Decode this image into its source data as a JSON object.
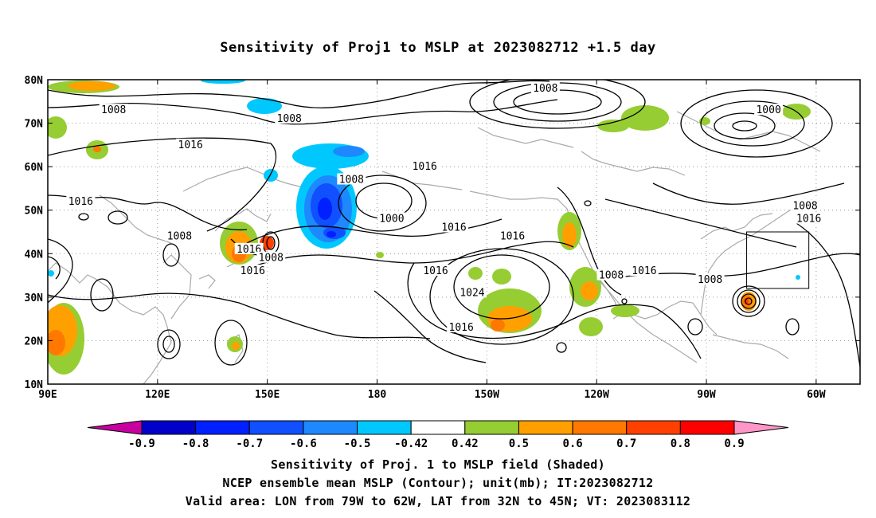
{
  "title": "Sensitivity of Proj1 to MSLP at 2023082712 +1.5 day",
  "captions": {
    "line1": "Sensitivity of Proj. 1 to MSLP field (Shaded)",
    "line2": "NCEP ensemble mean MSLP (Contour); unit(mb); IT:2023082712",
    "line3": "Valid area: LON from 79W to 62W, LAT from 32N to 45N; VT: 2023083112"
  },
  "map": {
    "lon_range": [
      90,
      312
    ],
    "lat_range": [
      10,
      80
    ],
    "x_ticks": [
      {
        "lon": 90,
        "label": "90E"
      },
      {
        "lon": 120,
        "label": "120E"
      },
      {
        "lon": 150,
        "label": "150E"
      },
      {
        "lon": 180,
        "label": "180"
      },
      {
        "lon": 210,
        "label": "150W"
      },
      {
        "lon": 240,
        "label": "120W"
      },
      {
        "lon": 270,
        "label": "90W"
      },
      {
        "lon": 300,
        "label": "60W"
      }
    ],
    "y_ticks": [
      {
        "lat": 10,
        "label": "10N"
      },
      {
        "lat": 20,
        "label": "20N"
      },
      {
        "lat": 30,
        "label": "30N"
      },
      {
        "lat": 40,
        "label": "40N"
      },
      {
        "lat": 50,
        "label": "50N"
      },
      {
        "lat": 60,
        "label": "60N"
      },
      {
        "lat": 70,
        "label": "70N"
      },
      {
        "lat": 80,
        "label": "80N"
      }
    ],
    "grid": "dotted",
    "valid_box": {
      "lon_min": 281,
      "lon_max": 298,
      "lat_min": 32,
      "lat_max": 45
    },
    "contour_labels": [
      {
        "text": "1008",
        "lon": 108,
        "lat": 73
      },
      {
        "text": "1008",
        "lon": 156,
        "lat": 71
      },
      {
        "text": "1008",
        "lon": 226,
        "lat": 78
      },
      {
        "text": "1000",
        "lon": 287,
        "lat": 73
      },
      {
        "text": "1016",
        "lon": 129,
        "lat": 65
      },
      {
        "text": "1016",
        "lon": 193,
        "lat": 60
      },
      {
        "text": "1008",
        "lon": 173,
        "lat": 57
      },
      {
        "text": "1016",
        "lon": 99,
        "lat": 52
      },
      {
        "text": "1008",
        "lon": 297,
        "lat": 51
      },
      {
        "text": "1000",
        "lon": 184,
        "lat": 48
      },
      {
        "text": "1016",
        "lon": 298,
        "lat": 48
      },
      {
        "text": "1016",
        "lon": 201,
        "lat": 46
      },
      {
        "text": "1008",
        "lon": 126,
        "lat": 44
      },
      {
        "text": "1016",
        "lon": 217,
        "lat": 44
      },
      {
        "text": "1016",
        "lon": 145,
        "lat": 41
      },
      {
        "text": "1008",
        "lon": 151,
        "lat": 39
      },
      {
        "text": "1016",
        "lon": 146,
        "lat": 36
      },
      {
        "text": "1016",
        "lon": 196,
        "lat": 36
      },
      {
        "text": "1008",
        "lon": 244,
        "lat": 35
      },
      {
        "text": "1016",
        "lon": 253,
        "lat": 36
      },
      {
        "text": "1008",
        "lon": 271,
        "lat": 34
      },
      {
        "text": "1024",
        "lon": 206,
        "lat": 31
      },
      {
        "text": "1016",
        "lon": 203,
        "lat": 23
      }
    ]
  },
  "colorbar": {
    "colors": [
      "#c800a0",
      "#0000c8",
      "#0020ff",
      "#1050ff",
      "#1e88ff",
      "#00c8ff",
      "#ffffff",
      "#96cd32",
      "#ffa000",
      "#ff7800",
      "#ff4000",
      "#ff0000",
      "#ff96c8"
    ],
    "labels": [
      "-0.9",
      "-0.8",
      "-0.7",
      "-0.6",
      "-0.5",
      "-0.42",
      "0.42",
      "0.5",
      "0.6",
      "0.7",
      "0.8",
      "0.9"
    ]
  },
  "colors": {
    "contour": "#000000",
    "coastline": "#aaaaaa",
    "grid": "#999999"
  }
}
